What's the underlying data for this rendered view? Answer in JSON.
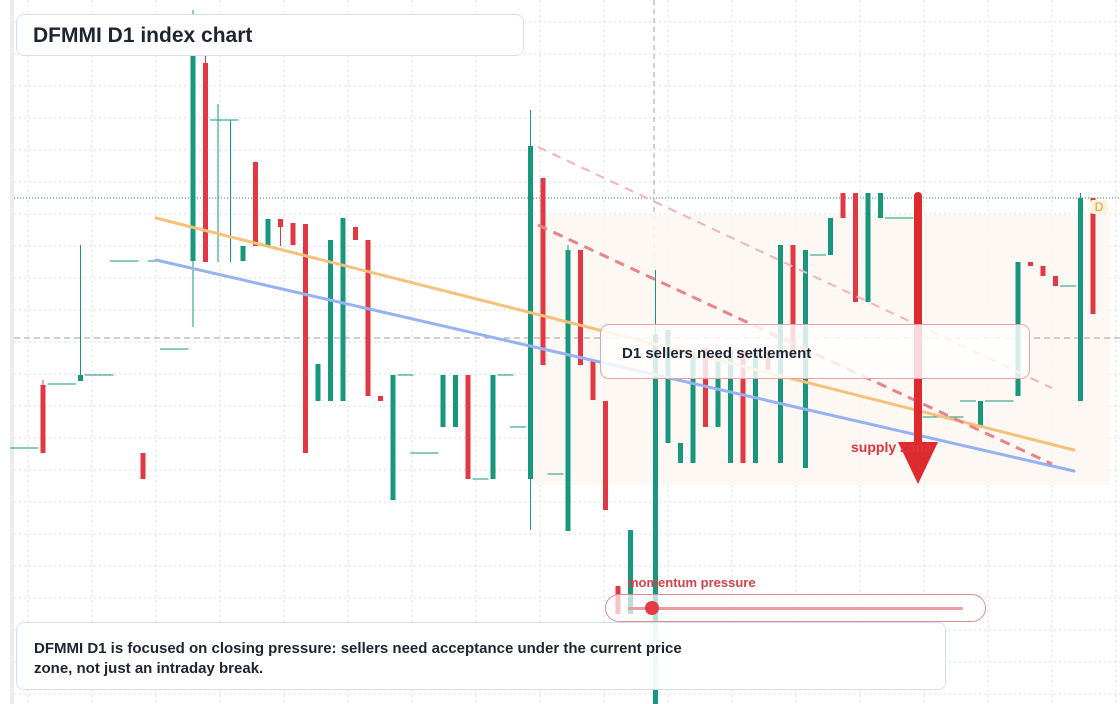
{
  "title": "DFMMI D1 index chart",
  "callout": "D1 sellers need settlement",
  "supply_label": "supply zone",
  "momentum": {
    "label": "momentum pressure",
    "level": 0.07
  },
  "note": "DFMMI D1 is focused on closing pressure: sellers need acceptance under the current price zone, not just an intraday break.",
  "price_tag": "D",
  "colors": {
    "up": "#16977e",
    "down": "#e23844",
    "orange_trend": "#f6c27a",
    "blue_trend": "#97b2f0",
    "resistance_dash": "#e88388",
    "arrow": "#dd2a2e",
    "grid": "#d9dde2"
  },
  "chart_data": {
    "type": "candlestick",
    "title": "DFMMI D1 index chart",
    "ylim": [
      0,
      704
    ],
    "candles": [
      [
        0,
        448,
        448,
        448,
        448
      ],
      [
        1,
        448,
        448,
        448,
        448
      ],
      [
        2,
        385,
        453,
        380,
        453
      ],
      [
        3,
        384,
        384,
        384,
        384
      ],
      [
        4,
        384,
        384,
        384,
        384
      ],
      [
        5,
        381,
        245,
        379,
        375
      ],
      [
        6,
        375,
        375,
        375,
        375
      ],
      [
        7,
        375,
        375,
        375,
        375
      ],
      [
        8,
        261,
        261,
        261,
        261
      ],
      [
        9,
        261,
        261,
        261,
        261
      ],
      [
        10,
        453,
        453,
        453,
        479
      ],
      [
        11,
        261,
        261,
        261,
        261
      ],
      [
        12,
        349,
        349,
        349,
        349
      ],
      [
        13,
        349,
        349,
        349,
        349
      ],
      [
        14,
        261,
        10,
        327,
        17
      ],
      [
        15,
        63,
        40,
        262,
        262
      ],
      [
        16,
        120,
        104,
        262,
        120
      ],
      [
        17,
        120,
        120,
        262,
        120
      ],
      [
        18,
        261,
        246,
        261,
        246
      ],
      [
        19,
        162,
        162,
        246,
        246
      ],
      [
        20,
        246,
        219,
        246,
        219
      ],
      [
        21,
        219,
        219,
        246,
        227
      ],
      [
        22,
        223,
        223,
        245,
        245
      ],
      [
        23,
        224,
        224,
        453,
        453
      ],
      [
        24,
        401,
        364,
        401,
        364
      ],
      [
        25,
        401,
        240,
        401,
        240
      ],
      [
        26,
        401,
        218,
        401,
        218
      ],
      [
        27,
        227,
        227,
        240,
        240
      ],
      [
        28,
        240,
        240,
        396,
        396
      ],
      [
        29,
        396,
        396,
        401,
        401
      ],
      [
        30,
        500,
        375,
        500,
        375
      ],
      [
        31,
        375,
        375,
        375,
        375
      ],
      [
        32,
        453,
        453,
        453,
        453
      ],
      [
        33,
        453,
        453,
        453,
        453
      ],
      [
        34,
        427,
        375,
        427,
        375
      ],
      [
        35,
        427,
        375,
        427,
        375
      ],
      [
        36,
        375,
        375,
        479,
        479
      ],
      [
        37,
        479,
        479,
        479,
        479
      ],
      [
        38,
        479,
        375,
        479,
        375
      ],
      [
        39,
        375,
        375,
        375,
        375
      ],
      [
        40,
        427,
        427,
        427,
        427
      ],
      [
        41,
        479,
        110,
        530,
        146
      ],
      [
        42,
        178,
        178,
        365,
        365
      ],
      [
        43,
        474,
        474,
        474,
        474
      ],
      [
        44,
        531,
        245,
        531,
        250
      ],
      [
        45,
        250,
        250,
        365,
        365
      ],
      [
        46,
        360,
        360,
        400,
        400
      ],
      [
        47,
        401,
        401,
        510,
        510
      ],
      [
        48,
        586,
        586,
        586,
        614
      ],
      [
        49,
        614,
        530,
        614,
        530
      ],
      [
        50,
        608,
        608,
        608,
        608
      ],
      [
        51,
        704,
        270,
        704,
        334
      ],
      [
        52,
        443,
        330,
        443,
        330
      ],
      [
        53,
        463,
        443,
        463,
        443
      ],
      [
        54,
        463,
        352,
        463,
        352
      ],
      [
        55,
        348,
        348,
        427,
        427
      ],
      [
        56,
        427,
        350,
        427,
        350
      ],
      [
        57,
        463,
        350,
        463,
        350
      ],
      [
        58,
        350,
        350,
        463,
        463
      ],
      [
        59,
        463,
        350,
        463,
        350
      ],
      [
        60,
        350,
        350,
        370,
        370
      ],
      [
        61,
        463,
        245,
        463,
        245
      ],
      [
        62,
        245,
        245,
        356,
        356
      ],
      [
        63,
        468,
        250,
        468,
        250
      ],
      [
        64,
        255,
        255,
        255,
        255
      ],
      [
        65,
        255,
        218,
        255,
        218
      ],
      [
        66,
        193,
        193,
        218,
        218
      ],
      [
        67,
        193,
        193,
        302,
        302
      ],
      [
        68,
        302,
        193,
        302,
        193
      ],
      [
        69,
        218,
        193,
        218,
        193
      ],
      [
        70,
        218,
        218,
        218,
        218
      ],
      [
        71,
        218,
        218,
        218,
        218
      ],
      [
        72,
        302,
        302,
        417,
        417
      ],
      [
        73,
        417,
        417,
        417,
        417
      ],
      [
        74,
        417,
        417,
        417,
        417
      ],
      [
        75,
        417,
        417,
        417,
        417
      ],
      [
        76,
        401,
        401,
        401,
        401
      ],
      [
        77,
        427,
        401,
        427,
        401
      ],
      [
        78,
        401,
        401,
        401,
        401
      ],
      [
        79,
        401,
        401,
        401,
        401
      ],
      [
        80,
        396,
        262,
        396,
        262
      ],
      [
        81,
        262,
        262,
        266,
        266
      ],
      [
        82,
        266,
        266,
        276,
        276
      ],
      [
        83,
        276,
        276,
        286,
        286
      ],
      [
        84,
        286,
        286,
        286,
        286
      ],
      [
        85,
        401,
        193,
        401,
        198
      ],
      [
        86,
        198,
        198,
        314,
        314
      ]
    ],
    "lines": [
      {
        "name": "",
        "points": [
          [
            156,
            218
          ],
          [
            1074,
            450
          ]
        ]
      },
      {
        "name": "",
        "points": [
          [
            156,
            260
          ],
          [
            1074,
            471
          ]
        ]
      }
    ],
    "horizontal_levels": [
      198,
      338
    ],
    "supply_zone": [
      1000,
      1080
    ]
  }
}
